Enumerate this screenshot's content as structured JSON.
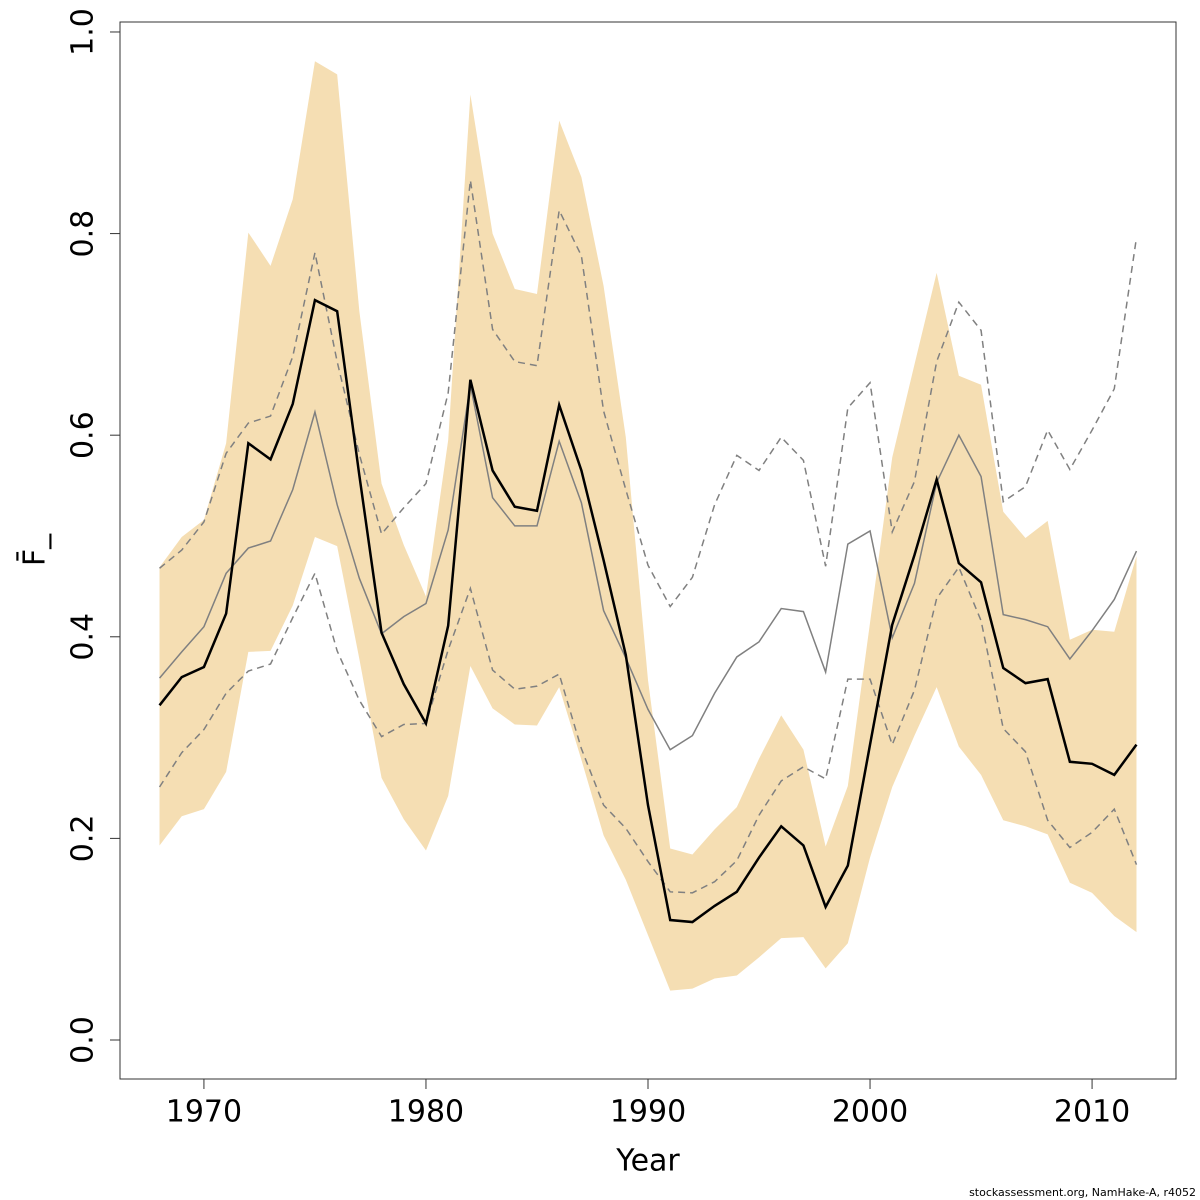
{
  "chart_data": {
    "type": "line",
    "xlabel": "Year",
    "ylabel": "F̄_",
    "footer": "stockassessment.org, NamHake-A, r4052",
    "x": [
      1968,
      1969,
      1970,
      1971,
      1972,
      1973,
      1974,
      1975,
      1976,
      1977,
      1978,
      1979,
      1980,
      1981,
      1982,
      1983,
      1984,
      1985,
      1986,
      1987,
      1988,
      1989,
      1990,
      1991,
      1992,
      1993,
      1994,
      1995,
      1996,
      1997,
      1998,
      1999,
      2000,
      2001,
      2002,
      2003,
      2004,
      2005,
      2006,
      2007,
      2008,
      2009,
      2010,
      2011,
      2012
    ],
    "band": {
      "color": "#f5deb3",
      "upper": [
        0.469,
        0.499,
        0.516,
        0.592,
        0.801,
        0.768,
        0.834,
        0.971,
        0.958,
        0.723,
        0.552,
        0.491,
        0.44,
        0.595,
        0.938,
        0.8,
        0.745,
        0.74,
        0.912,
        0.856,
        0.748,
        0.598,
        0.357,
        0.19,
        0.184,
        0.209,
        0.231,
        0.279,
        0.322,
        0.288,
        0.192,
        0.252,
        0.414,
        0.578,
        0.67,
        0.761,
        0.659,
        0.65,
        0.524,
        0.498,
        0.515,
        0.397,
        0.407,
        0.405,
        0.48
      ],
      "lower": [
        0.193,
        0.222,
        0.229,
        0.266,
        0.385,
        0.386,
        0.431,
        0.499,
        0.49,
        0.378,
        0.26,
        0.219,
        0.188,
        0.242,
        0.371,
        0.329,
        0.313,
        0.312,
        0.35,
        0.278,
        0.203,
        0.159,
        0.104,
        0.049,
        0.051,
        0.061,
        0.064,
        0.082,
        0.101,
        0.102,
        0.071,
        0.096,
        0.181,
        0.251,
        0.302,
        0.35,
        0.291,
        0.263,
        0.218,
        0.212,
        0.204,
        0.156,
        0.146,
        0.123,
        0.107
      ]
    },
    "series": [
      {
        "color": "#808080",
        "dash": true,
        "width": 1.5,
        "values": [
          0.468,
          0.486,
          0.514,
          0.582,
          0.612,
          0.619,
          0.678,
          0.781,
          0.673,
          0.581,
          0.502,
          0.528,
          0.552,
          0.642,
          0.853,
          0.705,
          0.673,
          0.669,
          0.823,
          0.778,
          0.624,
          0.546,
          0.471,
          0.43,
          0.459,
          0.531,
          0.58,
          0.565,
          0.598,
          0.575,
          0.47,
          0.627,
          0.652,
          0.504,
          0.554,
          0.673,
          0.732,
          0.704,
          0.534,
          0.549,
          0.605,
          0.566,
          0.605,
          0.646,
          0.796
        ]
      },
      {
        "color": "#808080",
        "dash": true,
        "width": 1.5,
        "values": [
          0.251,
          0.285,
          0.308,
          0.344,
          0.366,
          0.373,
          0.419,
          0.463,
          0.386,
          0.337,
          0.301,
          0.313,
          0.314,
          0.387,
          0.448,
          0.367,
          0.348,
          0.351,
          0.363,
          0.289,
          0.233,
          0.21,
          0.177,
          0.147,
          0.146,
          0.157,
          0.178,
          0.223,
          0.257,
          0.271,
          0.259,
          0.358,
          0.358,
          0.293,
          0.347,
          0.438,
          0.469,
          0.416,
          0.309,
          0.286,
          0.218,
          0.191,
          0.206,
          0.229,
          0.174
        ]
      },
      {
        "color": "#808080",
        "dash": false,
        "width": 1.5,
        "values": [
          0.359,
          0.385,
          0.41,
          0.463,
          0.488,
          0.495,
          0.546,
          0.623,
          0.531,
          0.458,
          0.403,
          0.42,
          0.433,
          0.506,
          0.65,
          0.538,
          0.51,
          0.51,
          0.594,
          0.533,
          0.426,
          0.379,
          0.328,
          0.288,
          0.302,
          0.344,
          0.38,
          0.395,
          0.428,
          0.425,
          0.365,
          0.492,
          0.505,
          0.399,
          0.453,
          0.553,
          0.6,
          0.559,
          0.422,
          0.417,
          0.41,
          0.378,
          0.406,
          0.437,
          0.485
        ]
      },
      {
        "color": "#000000",
        "dash": false,
        "width": 2.5,
        "values": [
          0.332,
          0.36,
          0.37,
          0.423,
          0.592,
          0.576,
          0.631,
          0.734,
          0.723,
          0.56,
          0.404,
          0.353,
          0.314,
          0.411,
          0.655,
          0.565,
          0.529,
          0.525,
          0.63,
          0.565,
          0.476,
          0.382,
          0.233,
          0.119,
          0.117,
          0.133,
          0.147,
          0.181,
          0.212,
          0.193,
          0.132,
          0.173,
          0.293,
          0.412,
          0.481,
          0.556,
          0.473,
          0.454,
          0.369,
          0.354,
          0.358,
          0.276,
          0.274,
          0.263,
          0.293
        ]
      }
    ],
    "xlim": [
      1966.22,
      2013.78
    ],
    "ylim": [
      -0.0387,
      1.0099
    ],
    "xticks": [
      1970,
      1980,
      1990,
      2000,
      2010
    ],
    "yticks": [
      {
        "value": 0,
        "label": "0.0"
      },
      0.2,
      0.4,
      0.6,
      0.8,
      {
        "value": 1,
        "label": "1.0"
      }
    ]
  }
}
